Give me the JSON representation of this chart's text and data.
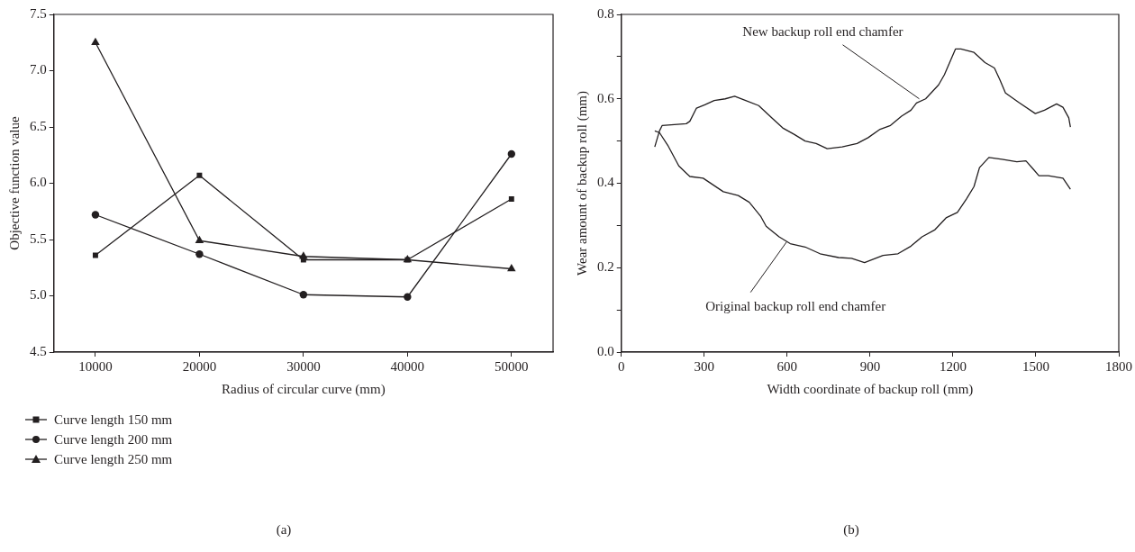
{
  "chart_data": [
    {
      "type": "line",
      "xlabel": "Radius of circular curve (mm)",
      "ylabel": "Objective function value",
      "x": [
        10000,
        20000,
        30000,
        40000,
        50000
      ],
      "xlim": [
        6000,
        54000
      ],
      "xticks": [
        10000,
        20000,
        30000,
        40000,
        50000
      ],
      "ylim": [
        4.5,
        7.5
      ],
      "yticks": [
        4.5,
        {
          "value": 5,
          "label": "5.0"
        },
        5.5,
        {
          "value": 6,
          "label": "6.0"
        },
        6.5,
        {
          "value": 7,
          "label": "7.0"
        },
        7.5
      ],
      "grid": false,
      "legend": "bottom left",
      "annotations": [
        "(a)"
      ],
      "series": [
        {
          "name": "Curve length 150 mm",
          "color": "#231f20",
          "marker": "square",
          "values": [
            5.36,
            6.07,
            5.32,
            5.32,
            5.86
          ]
        },
        {
          "name": "Curve length 200 mm",
          "color": "#231f20",
          "marker": "circle",
          "values": [
            5.72,
            5.37,
            5.01,
            4.99,
            6.26
          ]
        },
        {
          "name": "Curve length 250 mm",
          "color": "#231f20",
          "marker": "triangle",
          "values": [
            7.25,
            5.49,
            5.35,
            5.32,
            5.24
          ]
        }
      ]
    },
    {
      "type": "line",
      "xlabel": "Width coordinate of backup roll (mm)",
      "ylabel": "Wear amount of backup roll (mm)",
      "xlim": [
        0,
        1800
      ],
      "xticks": [
        0,
        300,
        600,
        900,
        1200,
        1500,
        1800
      ],
      "ylim": [
        0,
        0.8
      ],
      "yticks": [
        {
          "value": 0,
          "label": "0.0"
        },
        {
          "value": 0.1,
          "label": null
        },
        0.2,
        {
          "value": 0.3,
          "label": null
        },
        0.4,
        {
          "value": 0.5,
          "label": null
        },
        0.6,
        {
          "value": 0.7,
          "label": null
        },
        0.8
      ],
      "grid": false,
      "legend": false,
      "marker": "none",
      "annotations": [
        {
          "text": "New backup roll end chamfer",
          "x": 1078,
          "y": 0.6
        },
        {
          "text": "Original backup roll end chamfer",
          "x": 598,
          "y": 0.261
        },
        "(b)"
      ],
      "series": [
        {
          "color": "#231f20",
          "x": [
            121,
            138,
            148,
            235,
            248,
            272,
            302,
            336,
            376,
            410,
            450,
            497,
            544,
            584,
            625,
            665,
            705,
            745,
            799,
            853,
            893,
            934,
            974,
            1014,
            1048,
            1068,
            1101,
            1148,
            1169,
            1209,
            1229,
            1276,
            1316,
            1350,
            1370,
            1390,
            1437,
            1498,
            1531,
            1575,
            1598,
            1619,
            1625
          ],
          "values": [
            0.486,
            0.524,
            0.537,
            0.541,
            0.547,
            0.578,
            0.586,
            0.596,
            0.6,
            0.606,
            0.596,
            0.584,
            0.555,
            0.531,
            0.516,
            0.5,
            0.494,
            0.482,
            0.486,
            0.494,
            0.508,
            0.527,
            0.537,
            0.559,
            0.573,
            0.59,
            0.6,
            0.633,
            0.657,
            0.718,
            0.718,
            0.71,
            0.686,
            0.673,
            0.645,
            0.614,
            0.592,
            0.565,
            0.573,
            0.588,
            0.58,
            0.555,
            0.533
          ]
        },
        {
          "color": "#231f20",
          "x": [
            121,
            138,
            168,
            208,
            235,
            248,
            296,
            369,
            423,
            463,
            504,
            524,
            571,
            611,
            665,
            719,
            786,
            833,
            880,
            947,
            1001,
            1048,
            1088,
            1135,
            1175,
            1216,
            1249,
            1276,
            1296,
            1330,
            1377,
            1431,
            1464,
            1491,
            1511,
            1545,
            1598,
            1625
          ],
          "values": [
            0.524,
            0.52,
            0.49,
            0.441,
            0.424,
            0.416,
            0.412,
            0.38,
            0.371,
            0.355,
            0.322,
            0.298,
            0.273,
            0.257,
            0.249,
            0.233,
            0.224,
            0.222,
            0.212,
            0.229,
            0.233,
            0.251,
            0.273,
            0.29,
            0.318,
            0.331,
            0.363,
            0.392,
            0.437,
            0.461,
            0.457,
            0.451,
            0.453,
            0.433,
            0.418,
            0.418,
            0.412,
            0.386
          ]
        }
      ]
    }
  ]
}
